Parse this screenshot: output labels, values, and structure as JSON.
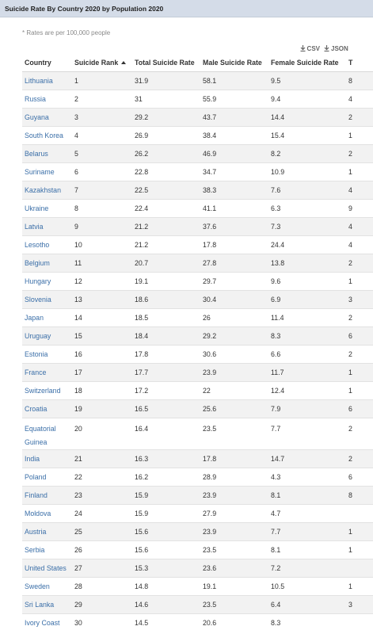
{
  "title": "Suicide Rate By Country 2020 by Population 2020",
  "note": "* Rates are per 100,000 people",
  "exports": {
    "csv_label": "CSV",
    "json_label": "JSON",
    "icon": "download-icon"
  },
  "columns": [
    "Country",
    "Suicide Rank",
    "Total Suicide Rate",
    "Male Suicide Rate",
    "Female Suicide Rate",
    "T"
  ],
  "sort": {
    "column": "Suicide Rank",
    "direction": "ascending"
  },
  "rows": [
    [
      "Lithuania",
      "1",
      "31.9",
      "58.1",
      "9.5",
      "8"
    ],
    [
      "Russia",
      "2",
      "31",
      "55.9",
      "9.4",
      "4"
    ],
    [
      "Guyana",
      "3",
      "29.2",
      "43.7",
      "14.4",
      "2"
    ],
    [
      "South Korea",
      "4",
      "26.9",
      "38.4",
      "15.4",
      "1"
    ],
    [
      "Belarus",
      "5",
      "26.2",
      "46.9",
      "8.2",
      "2"
    ],
    [
      "Suriname",
      "6",
      "22.8",
      "34.7",
      "10.9",
      "1"
    ],
    [
      "Kazakhstan",
      "7",
      "22.5",
      "38.3",
      "7.6",
      "4"
    ],
    [
      "Ukraine",
      "8",
      "22.4",
      "41.1",
      "6.3",
      "9"
    ],
    [
      "Latvia",
      "9",
      "21.2",
      "37.6",
      "7.3",
      "4"
    ],
    [
      "Lesotho",
      "10",
      "21.2",
      "17.8",
      "24.4",
      "4"
    ],
    [
      "Belgium",
      "11",
      "20.7",
      "27.8",
      "13.8",
      "2"
    ],
    [
      "Hungary",
      "12",
      "19.1",
      "29.7",
      "9.6",
      "1"
    ],
    [
      "Slovenia",
      "13",
      "18.6",
      "30.4",
      "6.9",
      "3"
    ],
    [
      "Japan",
      "14",
      "18.5",
      "26",
      "11.4",
      "2"
    ],
    [
      "Uruguay",
      "15",
      "18.4",
      "29.2",
      "8.3",
      "6"
    ],
    [
      "Estonia",
      "16",
      "17.8",
      "30.6",
      "6.6",
      "2"
    ],
    [
      "France",
      "17",
      "17.7",
      "23.9",
      "11.7",
      "1"
    ],
    [
      "Switzerland",
      "18",
      "17.2",
      "22",
      "12.4",
      "1"
    ],
    [
      "Croatia",
      "19",
      "16.5",
      "25.6",
      "7.9",
      "6"
    ],
    [
      "Equatorial Guinea",
      "20",
      "16.4",
      "23.5",
      "7.7",
      "2"
    ],
    [
      "India",
      "21",
      "16.3",
      "17.8",
      "14.7",
      "2"
    ],
    [
      "Poland",
      "22",
      "16.2",
      "28.9",
      "4.3",
      "6"
    ],
    [
      "Finland",
      "23",
      "15.9",
      "23.9",
      "8.1",
      "8"
    ],
    [
      "Moldova",
      "24",
      "15.9",
      "27.9",
      "4.7",
      ""
    ],
    [
      "Austria",
      "25",
      "15.6",
      "23.9",
      "7.7",
      "1"
    ],
    [
      "Serbia",
      "26",
      "15.6",
      "23.5",
      "8.1",
      "1"
    ],
    [
      "United States",
      "27",
      "15.3",
      "23.6",
      "7.2",
      ""
    ],
    [
      "Sweden",
      "28",
      "14.8",
      "19.1",
      "10.5",
      "1"
    ],
    [
      "Sri Lanka",
      "29",
      "14.6",
      "23.5",
      "6.4",
      "3"
    ],
    [
      "Ivory Coast",
      "30",
      "14.5",
      "20.6",
      "8.3",
      ""
    ]
  ]
}
